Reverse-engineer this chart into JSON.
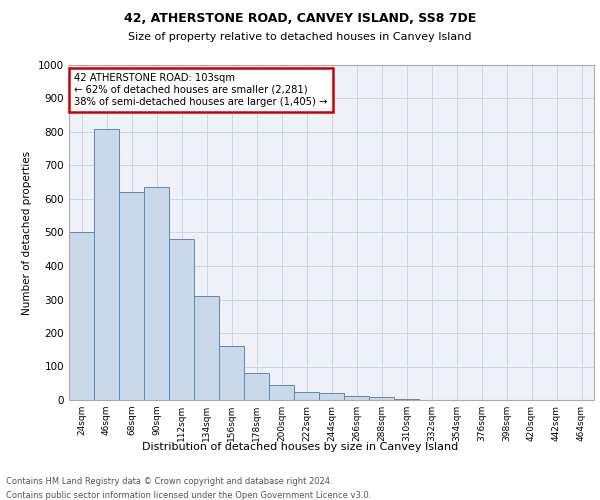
{
  "title1": "42, ATHERSTONE ROAD, CANVEY ISLAND, SS8 7DE",
  "title2": "Size of property relative to detached houses in Canvey Island",
  "xlabel": "Distribution of detached houses by size in Canvey Island",
  "ylabel": "Number of detached properties",
  "bar_values": [
    500,
    810,
    620,
    635,
    480,
    310,
    160,
    80,
    45,
    25,
    20,
    12,
    8,
    2,
    1,
    1,
    1,
    1,
    1,
    1,
    0
  ],
  "bin_labels": [
    "24sqm",
    "46sqm",
    "68sqm",
    "90sqm",
    "112sqm",
    "134sqm",
    "156sqm",
    "178sqm",
    "200sqm",
    "222sqm",
    "244sqm",
    "266sqm",
    "288sqm",
    "310sqm",
    "332sqm",
    "354sqm",
    "376sqm",
    "398sqm",
    "420sqm",
    "442sqm",
    "464sqm"
  ],
  "bar_color": "#c9d9ea",
  "bar_edge_color": "#5a8ab0",
  "grid_color": "#c8d8e8",
  "background_color": "#eef2f8",
  "annotation_text": "42 ATHERSTONE ROAD: 103sqm\n← 62% of detached houses are smaller (2,281)\n38% of semi-detached houses are larger (1,405) →",
  "annotation_box_color": "#ffffff",
  "annotation_box_edge_color": "#cc0000",
  "ylim": [
    0,
    1000
  ],
  "yticks": [
    0,
    100,
    200,
    300,
    400,
    500,
    600,
    700,
    800,
    900,
    1000
  ],
  "footnote1": "Contains HM Land Registry data © Crown copyright and database right 2024.",
  "footnote2": "Contains public sector information licensed under the Open Government Licence v3.0."
}
